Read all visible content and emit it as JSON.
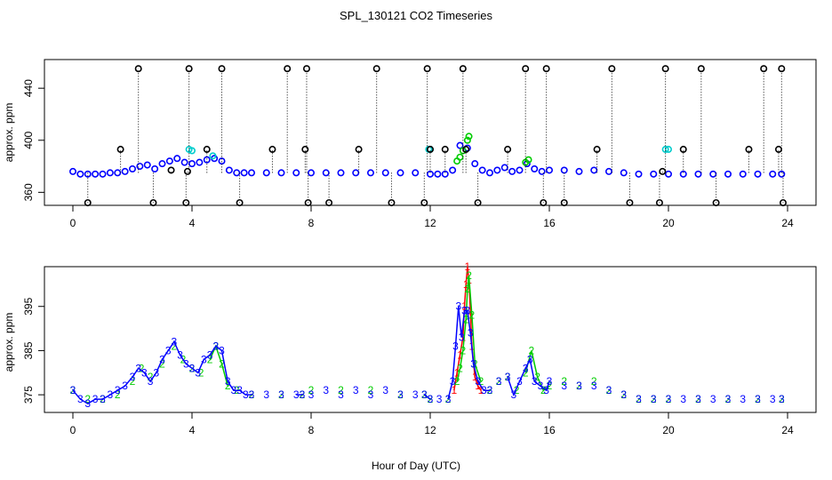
{
  "title": "SPL_130121  CO2 Timeseries",
  "xlabel": "Hour of Day (UTC)",
  "chart_data": [
    {
      "type": "scatter",
      "panel": "top",
      "ylabel": "approx. ppm",
      "xlim": [
        0,
        24
      ],
      "xticks": [
        0,
        4,
        8,
        12,
        16,
        20,
        24
      ],
      "ylim": [
        350,
        462
      ],
      "yticks": [
        360,
        400,
        440
      ],
      "series": [
        {
          "name": "blue",
          "color": "#0000ff",
          "x": [
            0.0,
            0.25,
            0.5,
            0.75,
            1.0,
            1.25,
            1.5,
            1.75,
            2.0,
            2.25,
            2.5,
            2.75,
            3.0,
            3.25,
            3.5,
            3.75,
            4.0,
            4.25,
            4.5,
            4.75,
            5.0,
            5.25,
            5.5,
            5.75,
            6.0,
            6.5,
            7.0,
            7.5,
            8.0,
            8.5,
            9.0,
            9.5,
            10.0,
            10.5,
            11.0,
            11.5,
            12.0,
            12.25,
            12.5,
            12.75,
            13.0,
            13.25,
            13.5,
            13.75,
            14.0,
            14.25,
            14.5,
            14.75,
            15.0,
            15.25,
            15.5,
            15.75,
            16.0,
            16.5,
            17.0,
            17.5,
            18.0,
            18.5,
            19.0,
            19.5,
            20.0,
            20.5,
            21.0,
            21.5,
            22.0,
            22.5,
            23.0,
            23.5,
            23.8
          ],
          "y": [
            376,
            374,
            374,
            374,
            374,
            375,
            375,
            376,
            378,
            380,
            381,
            378,
            382,
            384,
            386,
            383,
            382,
            383,
            385,
            386,
            384,
            377,
            375,
            375,
            375,
            375,
            375,
            375,
            375,
            375,
            375,
            375,
            375,
            375,
            375,
            375,
            374,
            374,
            374,
            377,
            396,
            394,
            382,
            377,
            375,
            377,
            379,
            376,
            377,
            382,
            378,
            376,
            377,
            377,
            376,
            377,
            376,
            375,
            374,
            374,
            374,
            374,
            374,
            374,
            374,
            374,
            374,
            374,
            374
          ]
        },
        {
          "name": "green",
          "color": "#00cc00",
          "x": [
            12.9,
            13.0,
            13.1,
            13.25,
            13.3,
            15.2,
            15.3
          ],
          "y": [
            384,
            387,
            392,
            400,
            403,
            383,
            385
          ]
        },
        {
          "name": "cyan",
          "color": "#00cccc",
          "x": [
            3.9,
            4.0,
            4.7,
            11.95,
            12.0,
            19.9,
            20.0
          ],
          "y": [
            393,
            392,
            388,
            393,
            393,
            393,
            393
          ]
        },
        {
          "name": "black",
          "color": "#000000",
          "x": [
            0.5,
            1.6,
            2.2,
            2.7,
            3.3,
            3.8,
            3.85,
            3.9,
            4.5,
            5.0,
            5.6,
            6.7,
            7.2,
            7.8,
            7.85,
            7.9,
            8.6,
            9.6,
            10.2,
            10.7,
            11.8,
            11.9,
            12.0,
            12.5,
            13.1,
            13.2,
            13.6,
            14.6,
            15.2,
            15.8,
            15.9,
            16.5,
            17.6,
            18.1,
            18.7,
            19.7,
            19.8,
            19.9,
            20.5,
            21.1,
            21.6,
            22.7,
            23.2,
            23.7,
            23.8,
            23.85
          ],
          "y": [
            352,
            393,
            455,
            352,
            377,
            352,
            376,
            455,
            393,
            455,
            352,
            393,
            455,
            393,
            455,
            352,
            352,
            393,
            455,
            352,
            352,
            455,
            393,
            393,
            455,
            393,
            352,
            393,
            455,
            352,
            455,
            352,
            393,
            455,
            352,
            352,
            376,
            455,
            393,
            455,
            352,
            393,
            455,
            393,
            455,
            352
          ]
        }
      ]
    },
    {
      "type": "line",
      "panel": "bottom",
      "ylabel": "approx. ppm",
      "xlim": [
        0,
        24
      ],
      "xticks": [
        0,
        4,
        8,
        12,
        16,
        20,
        24
      ],
      "ylim": [
        371,
        404
      ],
      "yticks": [
        375,
        385,
        395
      ],
      "series": [
        {
          "name": "1",
          "label": "1",
          "color": "#ff0000",
          "x": [
            12.8,
            12.9,
            13.0,
            13.1,
            13.15,
            13.2,
            13.25,
            13.3,
            13.35,
            13.4,
            13.5,
            13.6,
            13.7
          ],
          "y": [
            376,
            380,
            384,
            388,
            395,
            400,
            404,
            401,
            394,
            386,
            379,
            377,
            376
          ]
        },
        {
          "name": "2",
          "label": "2",
          "color": "#00cc00",
          "x": [
            0.0,
            0.5,
            1.0,
            1.5,
            2.0,
            2.3,
            2.6,
            3.0,
            3.4,
            3.7,
            4.0,
            4.3,
            4.6,
            4.8,
            5.0,
            5.2,
            5.5,
            6.0,
            7.0,
            7.7,
            8.0,
            9.0,
            10.0,
            11.0,
            11.8,
            12.0,
            12.6,
            12.9,
            13.0,
            13.1,
            13.2,
            13.25,
            13.3,
            13.4,
            13.5,
            13.7,
            14.0,
            14.3,
            14.6,
            14.9,
            15.2,
            15.4,
            15.6,
            15.8,
            16.0,
            16.5,
            17.0,
            17.5,
            18.0,
            18.5,
            19.0,
            19.5,
            20.0,
            21.0,
            22.0,
            23.0,
            23.8
          ],
          "y": [
            376,
            374,
            374,
            375,
            378,
            381,
            379,
            382,
            386,
            383,
            381,
            380,
            383,
            386,
            382,
            377,
            376,
            375,
            375,
            375,
            376,
            376,
            376,
            375,
            375,
            374,
            374,
            378,
            381,
            385,
            392,
            399,
            402,
            393,
            382,
            378,
            376,
            378,
            379,
            376,
            380,
            385,
            379,
            376,
            377,
            378,
            377,
            378,
            376,
            375,
            374,
            374,
            374,
            374,
            374,
            374,
            374
          ]
        },
        {
          "name": "3",
          "label": "3",
          "color": "#0000ff",
          "x": [
            0.0,
            0.25,
            0.5,
            0.75,
            1.0,
            1.25,
            1.5,
            1.75,
            2.0,
            2.2,
            2.4,
            2.6,
            2.8,
            3.0,
            3.2,
            3.4,
            3.6,
            3.8,
            4.0,
            4.2,
            4.4,
            4.6,
            4.8,
            5.0,
            5.2,
            5.4,
            5.6,
            5.8,
            6.0,
            6.5,
            7.0,
            7.5,
            7.7,
            8.0,
            8.5,
            9.0,
            9.5,
            10.0,
            10.5,
            11.0,
            11.5,
            11.8,
            12.0,
            12.3,
            12.6,
            12.75,
            12.85,
            12.95,
            13.05,
            13.15,
            13.25,
            13.35,
            13.45,
            13.6,
            13.8,
            14.0,
            14.3,
            14.6,
            14.8,
            15.0,
            15.2,
            15.35,
            15.5,
            15.7,
            15.9,
            16.0,
            16.5,
            17.0,
            17.5,
            18.0,
            18.5,
            19.0,
            19.5,
            20.0,
            20.5,
            21.0,
            21.5,
            22.0,
            22.5,
            23.0,
            23.5,
            23.8
          ],
          "y": [
            376,
            374,
            373,
            374,
            374,
            375,
            376,
            377,
            379,
            381,
            380,
            378,
            380,
            383,
            385,
            387,
            384,
            382,
            381,
            380,
            383,
            384,
            386,
            385,
            378,
            376,
            376,
            375,
            375,
            375,
            375,
            375,
            375,
            375,
            376,
            375,
            376,
            375,
            376,
            375,
            375,
            375,
            374,
            374,
            374,
            378,
            386,
            395,
            388,
            394,
            394,
            389,
            382,
            378,
            376,
            376,
            378,
            379,
            375,
            378,
            381,
            383,
            378,
            377,
            376,
            378,
            377,
            377,
            377,
            376,
            375,
            374,
            374,
            374,
            374,
            374,
            374,
            374,
            374,
            374,
            374,
            374
          ]
        }
      ]
    }
  ]
}
